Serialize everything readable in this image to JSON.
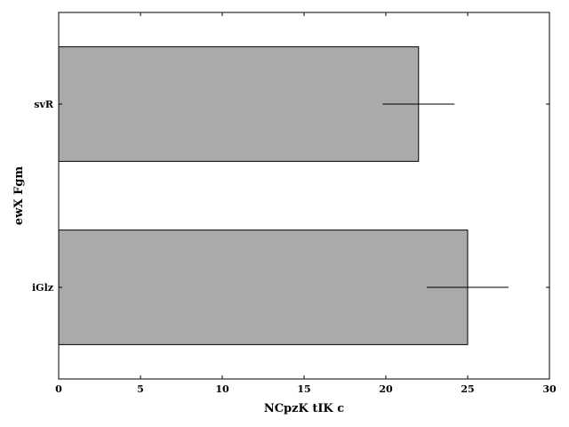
{
  "chart_data": {
    "type": "bar",
    "orientation": "horizontal",
    "categories": [
      "svR",
      "iGlz"
    ],
    "values": [
      22,
      25
    ],
    "errors": [
      2.2,
      2.5
    ],
    "xlabel": "NCpzK tIK c",
    "ylabel": "ewX Fgm",
    "xlim": [
      0,
      30
    ],
    "xticks": [
      0,
      5,
      10,
      15,
      20,
      25,
      30
    ],
    "grid": false,
    "colors": {
      "bar": "#aaaaaa",
      "edge": "#000000",
      "error": "#000000"
    }
  }
}
